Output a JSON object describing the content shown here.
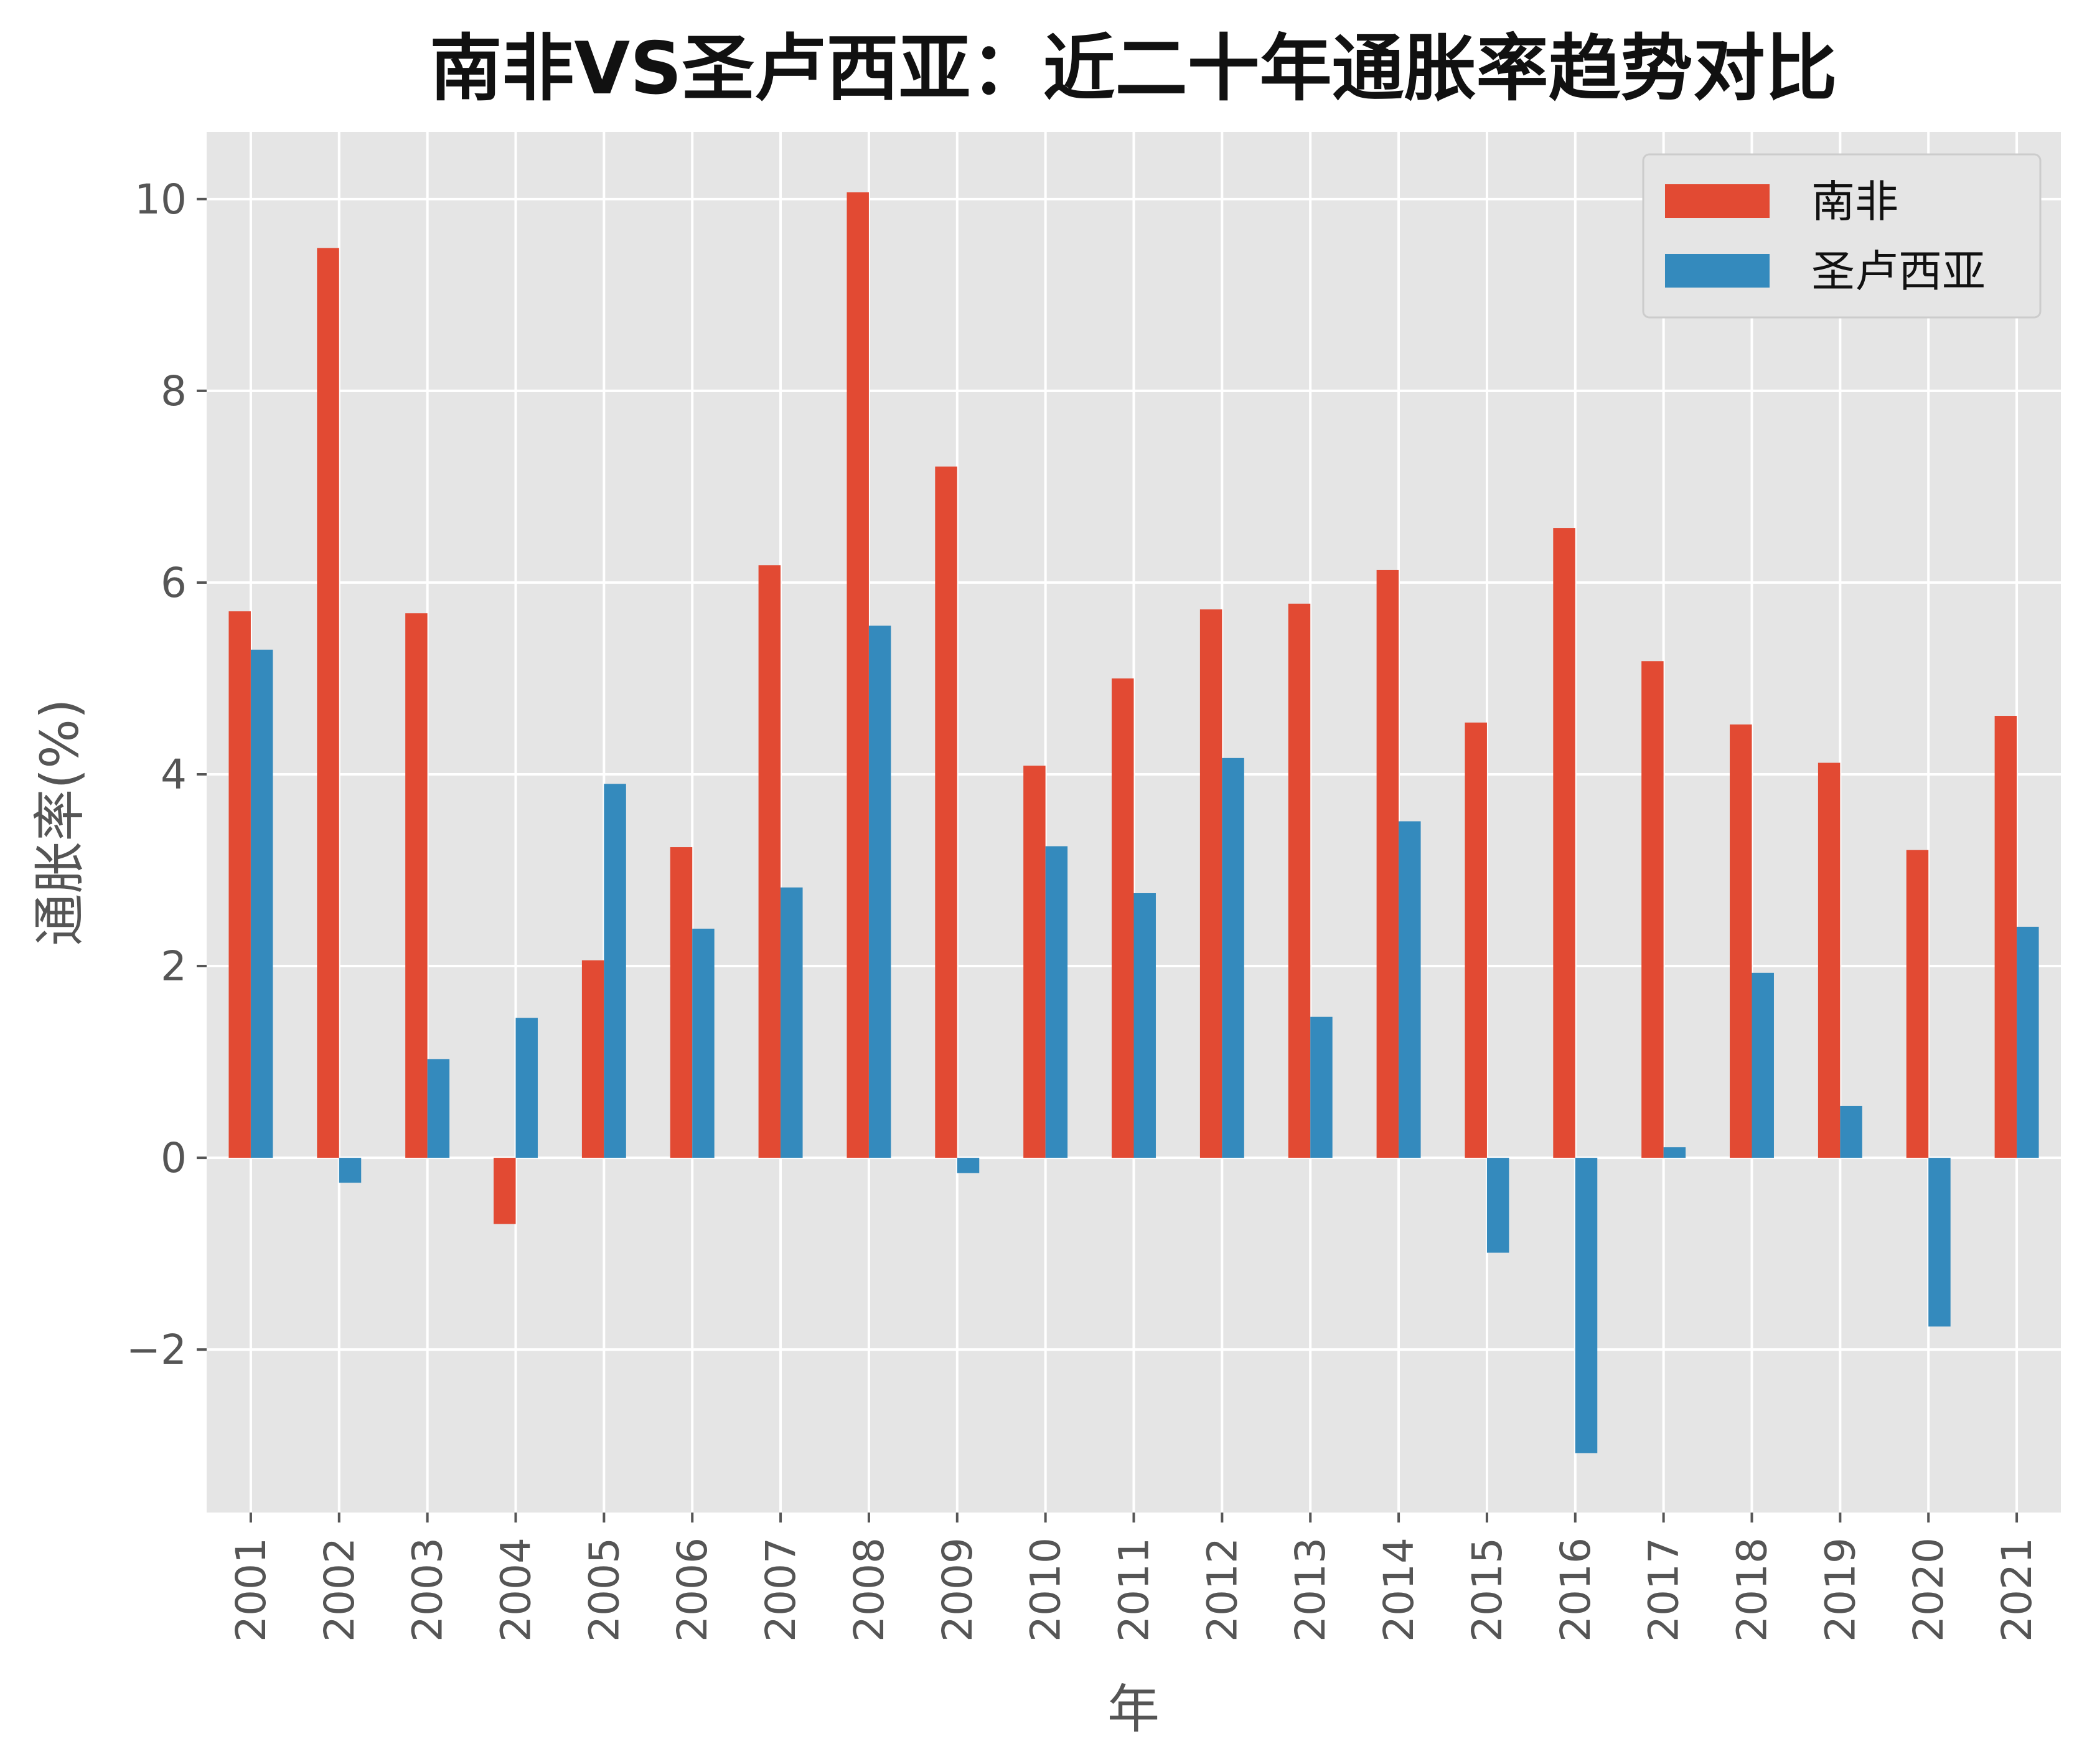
{
  "chart_data": {
    "type": "bar",
    "title": "南非VS圣卢西亚：近二十年通胀率趋势对比",
    "xlabel": "年",
    "ylabel": "通胀率(%)",
    "categories": [
      "2001",
      "2002",
      "2003",
      "2004",
      "2005",
      "2006",
      "2007",
      "2008",
      "2009",
      "2010",
      "2011",
      "2012",
      "2013",
      "2014",
      "2015",
      "2016",
      "2017",
      "2018",
      "2019",
      "2020",
      "2021"
    ],
    "series": [
      {
        "name": "南非",
        "color": "#E24A33",
        "values": [
          5.7,
          9.49,
          5.68,
          -0.69,
          2.06,
          3.24,
          6.18,
          10.07,
          7.21,
          4.09,
          5.0,
          5.72,
          5.78,
          6.13,
          4.54,
          6.57,
          5.18,
          4.52,
          4.12,
          3.21,
          4.61
        ]
      },
      {
        "name": "圣卢西亚",
        "color": "#348ABD",
        "values": [
          5.3,
          -0.26,
          1.03,
          1.46,
          3.9,
          2.39,
          2.82,
          5.55,
          -0.16,
          3.25,
          2.76,
          4.17,
          1.47,
          3.51,
          -0.99,
          -3.08,
          0.11,
          1.93,
          0.54,
          -1.76,
          2.41
        ]
      }
    ],
    "ylim": [
      -3.7,
      10.7
    ],
    "yticks": [
      -2,
      0,
      2,
      4,
      6,
      8,
      10
    ],
    "ytick_labels": [
      "−2",
      "0",
      "2",
      "4",
      "6",
      "8",
      "10"
    ],
    "grid": true,
    "legend_position": "top-right",
    "background": "#E5E5E5"
  }
}
